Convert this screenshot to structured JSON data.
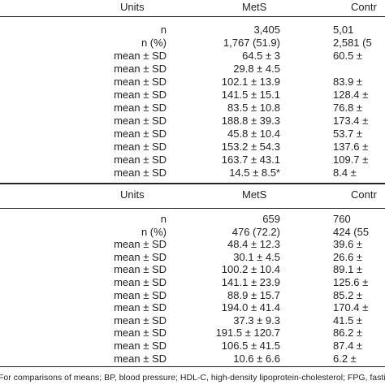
{
  "sections": [
    {
      "header": {
        "units": "Units",
        "mets": "MetS",
        "control": "Contr"
      },
      "rows": [
        [
          "n",
          "3,405",
          "5,01"
        ],
        [
          "n (%)",
          "1,767 (51.9)",
          "2,581 (5"
        ],
        [
          "mean ± SD",
          "64.5 ± 3",
          "60.5 ±"
        ],
        [
          "mean ± SD",
          "29.8 ± 4.5"
        ],
        [
          "mean ± SD",
          "102.1 ± 13.9",
          "83.9 ±"
        ],
        [
          "mean ± SD",
          "141.5 ± 15.1",
          "128.4 ±"
        ],
        [
          "mean ± SD",
          "83.5 ± 10.8",
          "76.8 ±"
        ],
        [
          "mean ± SD",
          "188.8 ± 39.3",
          "173.4 ±"
        ],
        [
          "mean ± SD",
          "45.8 ± 10.4",
          "53.7 ±"
        ],
        [
          "mean ± SD",
          "153.2 ± 54.3",
          "137.6 ±"
        ],
        [
          "mean ± SD",
          "163.7 ± 43.1",
          "109.7 ±"
        ],
        [
          "mean ± SD",
          "14.5 ± 8.5*",
          "8.4 ±"
        ]
      ]
    },
    {
      "header": {
        "units": "Units",
        "mets": "MetS",
        "control": "Contr"
      },
      "rows": [
        [
          "n",
          "659",
          "760"
        ],
        [
          "n (%)",
          "476 (72.2)",
          "424 (55"
        ],
        [
          "mean ± SD",
          "48.4 ± 12.3",
          "39.6 ±"
        ],
        [
          "mean ± SD",
          "30.1 ± 4.5",
          "26.6 ±"
        ],
        [
          "mean ± SD",
          "100.2 ± 10.4",
          "89.1 ±"
        ],
        [
          "mean ± SD",
          "141.1 ± 23.9",
          "125.6 ±"
        ],
        [
          "mean ± SD",
          "88.9 ± 15.7",
          "85.2 ±"
        ],
        [
          "mean ± SD",
          "194.0 ± 41.4",
          "170.4 ±"
        ],
        [
          "mean ± SD",
          "37.3 ± 9.3",
          "41.5 ±"
        ],
        [
          "mean ± SD",
          "191.5 ± 120.7",
          "86.2 ±"
        ],
        [
          "mean ± SD",
          "106.5 ± 41.5",
          "87.4 ±"
        ],
        [
          "mean ± SD",
          "10.6 ± 6.6",
          "6.2 ±"
        ]
      ]
    }
  ],
  "footnote": "For comparisons of means; BP, blood pressure; HDL-C, high-density lipoprotein-cholesterol; FPG, fasting plasma"
}
